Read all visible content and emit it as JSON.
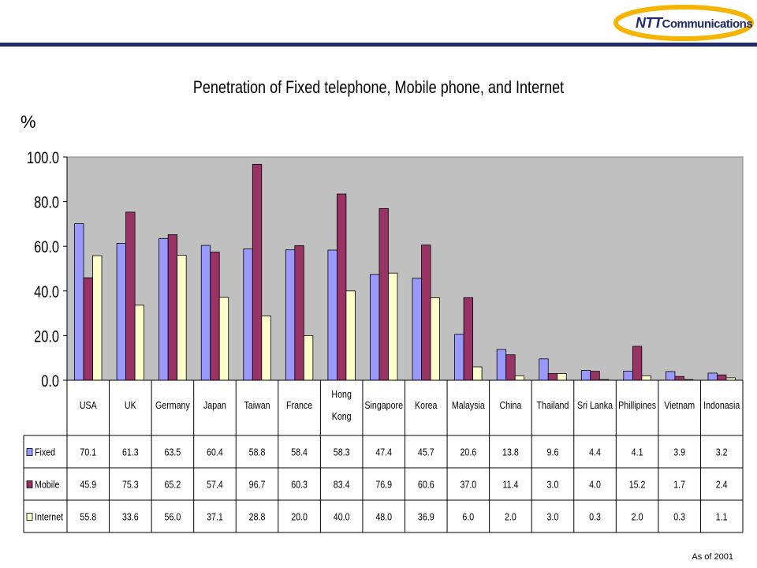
{
  "header": {
    "logo_text_brand": "NTT",
    "logo_text_rest": "Communications"
  },
  "footer": {
    "note": "As of 2001"
  },
  "colors": {
    "fixed": "#9999ff",
    "mobile": "#993366",
    "internet": "#ffffcc",
    "plot_bg": "#c0c0c0",
    "brand": "#1f2b6b",
    "logo_swoosh": "#f5b400"
  },
  "chart_data": {
    "type": "bar",
    "title": "Penetration of Fixed telephone, Mobile phone, and Internet",
    "ylabel": "%",
    "ylim": [
      0,
      100
    ],
    "yticks": [
      "0.0",
      "20.0",
      "40.0",
      "60.0",
      "80.0",
      "100.0"
    ],
    "categories": [
      "USA",
      "UK",
      "Germany",
      "Japan",
      "Taiwan",
      "France",
      "Hong Kong",
      "Singapore",
      "Korea",
      "Malaysia",
      "China",
      "Thailand",
      "Sri Lanka",
      "Phillipines",
      "Vietnam",
      "Indonasia"
    ],
    "series": [
      {
        "name": "Fixed",
        "values": [
          70.1,
          61.3,
          63.5,
          60.4,
          58.8,
          58.4,
          58.3,
          47.4,
          45.7,
          20.6,
          13.8,
          9.6,
          4.4,
          4.1,
          3.9,
          3.2
        ],
        "labels": [
          "70.1",
          "61.3",
          "63.5",
          "60.4",
          "58.8",
          "58.4",
          "58.3",
          "47.4",
          "45.7",
          "20.6",
          "13.8",
          "9.6",
          "4.4",
          "4.1",
          "3.9",
          "3.2"
        ]
      },
      {
        "name": "Mobile",
        "values": [
          45.9,
          75.3,
          65.2,
          57.4,
          96.7,
          60.3,
          83.4,
          76.9,
          60.6,
          37.0,
          11.4,
          3.0,
          4.0,
          15.2,
          1.7,
          2.4
        ],
        "labels": [
          "45.9",
          "75.3",
          "65.2",
          "57.4",
          "96.7",
          "60.3",
          "83.4",
          "76.9",
          "60.6",
          "37.0",
          "11.4",
          "3.0",
          "4.0",
          "15.2",
          "1.7",
          "2.4"
        ]
      },
      {
        "name": "Internet",
        "values": [
          55.8,
          33.6,
          56.0,
          37.1,
          28.8,
          20.0,
          40.0,
          48.0,
          36.9,
          6.0,
          2.0,
          3.0,
          0.3,
          2.0,
          0.3,
          1.1
        ],
        "labels": [
          "55.8",
          "33.6",
          "56.0",
          "37.1",
          "28.8",
          "20.0",
          "40.0",
          "48.0",
          "36.9",
          "6.0",
          "2.0",
          "3.0",
          "0.3",
          "2.0",
          "0.3",
          "1.1"
        ]
      }
    ],
    "grid": false,
    "legend": "data-table"
  }
}
